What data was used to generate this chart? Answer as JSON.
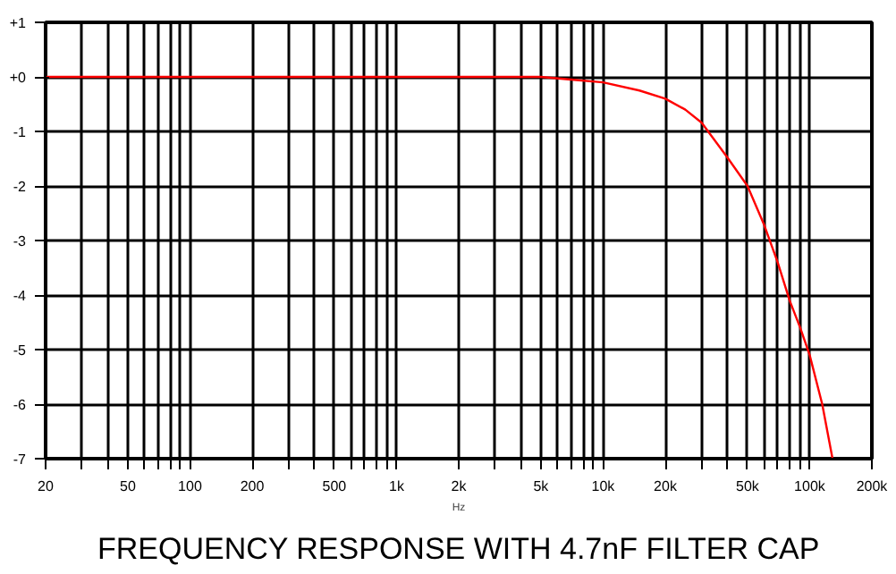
{
  "chart_data": {
    "type": "line",
    "title": "FREQUENCY RESPONSE WITH 4.7nF FILTER CAP",
    "xlabel": "Hz",
    "log": "x",
    "x": [
      20,
      1000,
      5000,
      7000,
      10000,
      15000,
      20000,
      25000,
      30000,
      40000,
      50000,
      60000,
      70000,
      80000,
      90000,
      100000,
      115000,
      129000
    ],
    "series": [
      {
        "color": "#ff0000",
        "values": [
          0,
          0,
          0,
          -0.05,
          -0.1,
          -0.25,
          -0.4,
          -0.6,
          -0.84,
          -1.48,
          -2.0,
          -2.7,
          -3.4,
          -4.1,
          -4.6,
          -5.1,
          -6.0,
          -7.0
        ]
      }
    ],
    "xlim": [
      20,
      200000
    ],
    "xticks": [
      20,
      {
        "value": 30,
        "label": null
      },
      {
        "value": 40,
        "label": null
      },
      50,
      {
        "value": 60,
        "label": null
      },
      {
        "value": 70,
        "label": null
      },
      {
        "value": 80,
        "label": null
      },
      {
        "value": 90,
        "label": null
      },
      100,
      200,
      {
        "value": 300,
        "label": null
      },
      {
        "value": 400,
        "label": null
      },
      500,
      {
        "value": 600,
        "label": null
      },
      {
        "value": 700,
        "label": null
      },
      {
        "value": 800,
        "label": null
      },
      {
        "value": 900,
        "label": null
      },
      {
        "value": 1000,
        "label": "1k"
      },
      {
        "value": 2000,
        "label": "2k"
      },
      {
        "value": 3000,
        "label": null
      },
      {
        "value": 4000,
        "label": null
      },
      {
        "value": 5000,
        "label": "5k"
      },
      {
        "value": 6000,
        "label": null
      },
      {
        "value": 7000,
        "label": null
      },
      {
        "value": 8000,
        "label": null
      },
      {
        "value": 9000,
        "label": null
      },
      {
        "value": 10000,
        "label": "10k"
      },
      {
        "value": 20000,
        "label": "20k"
      },
      {
        "value": 30000,
        "label": null
      },
      {
        "value": 40000,
        "label": null
      },
      {
        "value": 50000,
        "label": "50k"
      },
      {
        "value": 60000,
        "label": null
      },
      {
        "value": 70000,
        "label": null
      },
      {
        "value": 80000,
        "label": null
      },
      {
        "value": 90000,
        "label": null
      },
      {
        "value": 100000,
        "label": "100k"
      },
      {
        "value": 200000,
        "label": "200k"
      }
    ],
    "ylim": [
      -7,
      1
    ],
    "yticks": [
      {
        "value": 1,
        "label": "+1"
      },
      {
        "value": 0,
        "label": "+0"
      },
      -1,
      -2,
      -3,
      -4,
      -5,
      -6,
      -7
    ],
    "grid": true,
    "line_style": "solid",
    "marker": "none"
  }
}
